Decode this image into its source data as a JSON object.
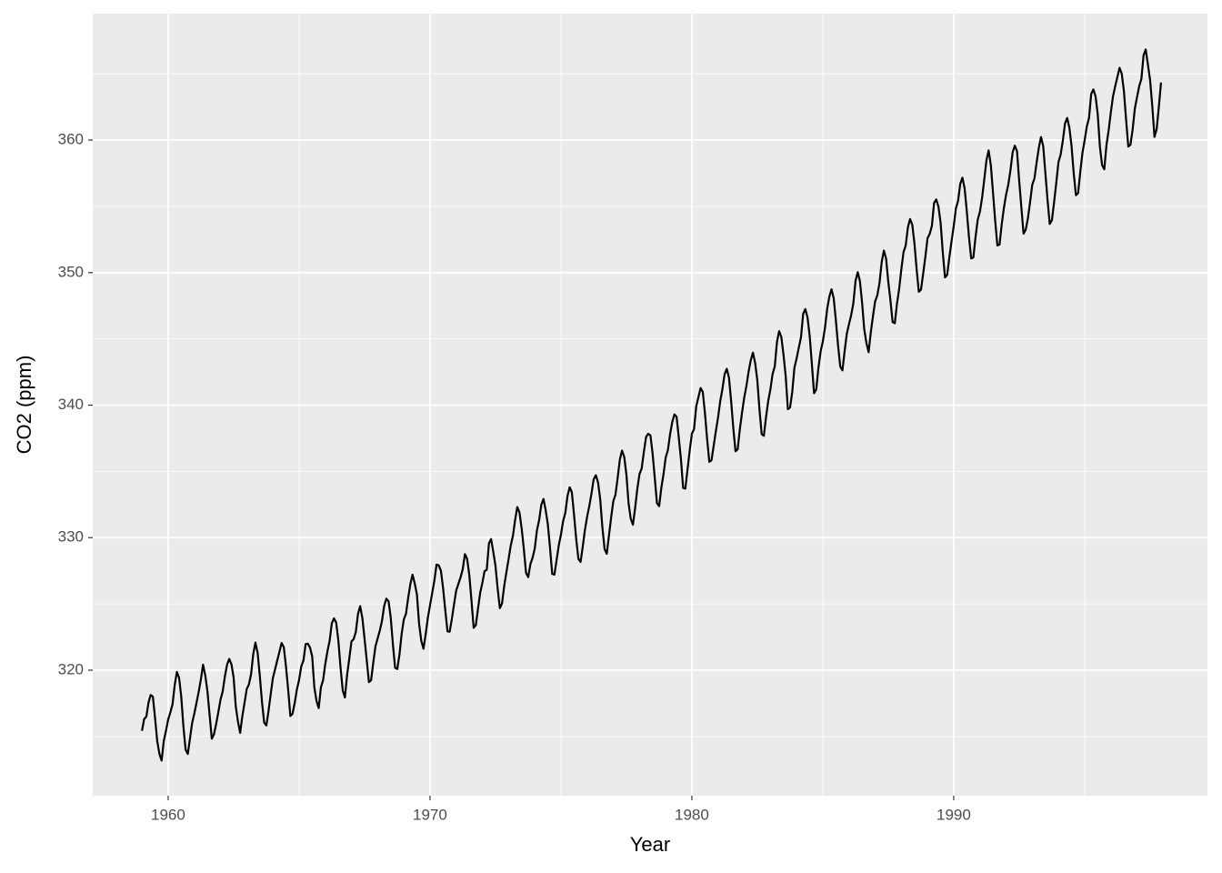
{
  "chart_data": {
    "type": "line",
    "x_label": "Year",
    "y_label": "CO2 (ppm)",
    "xlim": [
      1957.12,
      1999.69
    ],
    "xticks": [
      1960,
      1970,
      1980,
      1990
    ],
    "ylim": [
      310.53,
      369.54
    ],
    "yticks": [
      320,
      330,
      340,
      350,
      360
    ],
    "grid": true,
    "x": [
      1959,
      1959.083,
      1959.167,
      1959.25,
      1959.333,
      1959.417,
      1959.5,
      1959.583,
      1959.667,
      1959.75,
      1959.833,
      1959.917,
      1960,
      1960.083,
      1960.167,
      1960.25,
      1960.333,
      1960.417,
      1960.5,
      1960.583,
      1960.667,
      1960.75,
      1960.833,
      1960.917,
      1961,
      1961.083,
      1961.167,
      1961.25,
      1961.333,
      1961.417,
      1961.5,
      1961.583,
      1961.667,
      1961.75,
      1961.833,
      1961.917,
      1962,
      1962.083,
      1962.167,
      1962.25,
      1962.333,
      1962.417,
      1962.5,
      1962.583,
      1962.667,
      1962.75,
      1962.833,
      1962.917,
      1963,
      1963.083,
      1963.167,
      1963.25,
      1963.333,
      1963.417,
      1963.5,
      1963.583,
      1963.667,
      1963.75,
      1963.833,
      1963.917,
      1964,
      1964.083,
      1964.167,
      1964.25,
      1964.333,
      1964.417,
      1964.5,
      1964.583,
      1964.667,
      1964.75,
      1964.833,
      1964.917,
      1965,
      1965.083,
      1965.167,
      1965.25,
      1965.333,
      1965.417,
      1965.5,
      1965.583,
      1965.667,
      1965.75,
      1965.833,
      1965.917,
      1966,
      1966.083,
      1966.167,
      1966.25,
      1966.333,
      1966.417,
      1966.5,
      1966.583,
      1966.667,
      1966.75,
      1966.833,
      1966.917,
      1967,
      1967.083,
      1967.167,
      1967.25,
      1967.333,
      1967.417,
      1967.5,
      1967.583,
      1967.667,
      1967.75,
      1967.833,
      1967.917,
      1968,
      1968.083,
      1968.167,
      1968.25,
      1968.333,
      1968.417,
      1968.5,
      1968.583,
      1968.667,
      1968.75,
      1968.833,
      1968.917,
      1969,
      1969.083,
      1969.167,
      1969.25,
      1969.333,
      1969.417,
      1969.5,
      1969.583,
      1969.667,
      1969.75,
      1969.833,
      1969.917,
      1970,
      1970.083,
      1970.167,
      1970.25,
      1970.333,
      1970.417,
      1970.5,
      1970.583,
      1970.667,
      1970.75,
      1970.833,
      1970.917,
      1971,
      1971.083,
      1971.167,
      1971.25,
      1971.333,
      1971.417,
      1971.5,
      1971.583,
      1971.667,
      1971.75,
      1971.833,
      1971.917,
      1972,
      1972.083,
      1972.167,
      1972.25,
      1972.333,
      1972.417,
      1972.5,
      1972.583,
      1972.667,
      1972.75,
      1972.833,
      1972.917,
      1973,
      1973.083,
      1973.167,
      1973.25,
      1973.333,
      1973.417,
      1973.5,
      1973.583,
      1973.667,
      1973.75,
      1973.833,
      1973.917,
      1974,
      1974.083,
      1974.167,
      1974.25,
      1974.333,
      1974.417,
      1974.5,
      1974.583,
      1974.667,
      1974.75,
      1974.833,
      1974.917,
      1975,
      1975.083,
      1975.167,
      1975.25,
      1975.333,
      1975.417,
      1975.5,
      1975.583,
      1975.667,
      1975.75,
      1975.833,
      1975.917,
      1976,
      1976.083,
      1976.167,
      1976.25,
      1976.333,
      1976.417,
      1976.5,
      1976.583,
      1976.667,
      1976.75,
      1976.833,
      1976.917,
      1977,
      1977.083,
      1977.167,
      1977.25,
      1977.333,
      1977.417,
      1977.5,
      1977.583,
      1977.667,
      1977.75,
      1977.833,
      1977.917,
      1978,
      1978.083,
      1978.167,
      1978.25,
      1978.333,
      1978.417,
      1978.5,
      1978.583,
      1978.667,
      1978.75,
      1978.833,
      1978.917,
      1979,
      1979.083,
      1979.167,
      1979.25,
      1979.333,
      1979.417,
      1979.5,
      1979.583,
      1979.667,
      1979.75,
      1979.833,
      1979.917,
      1980,
      1980.083,
      1980.167,
      1980.25,
      1980.333,
      1980.417,
      1980.5,
      1980.583,
      1980.667,
      1980.75,
      1980.833,
      1980.917,
      1981,
      1981.083,
      1981.167,
      1981.25,
      1981.333,
      1981.417,
      1981.5,
      1981.583,
      1981.667,
      1981.75,
      1981.833,
      1981.917,
      1982,
      1982.083,
      1982.167,
      1982.25,
      1982.333,
      1982.417,
      1982.5,
      1982.583,
      1982.667,
      1982.75,
      1982.833,
      1982.917,
      1983,
      1983.083,
      1983.167,
      1983.25,
      1983.333,
      1983.417,
      1983.5,
      1983.583,
      1983.667,
      1983.75,
      1983.833,
      1983.917,
      1984,
      1984.083,
      1984.167,
      1984.25,
      1984.333,
      1984.417,
      1984.5,
      1984.583,
      1984.667,
      1984.75,
      1984.833,
      1984.917,
      1985,
      1985.083,
      1985.167,
      1985.25,
      1985.333,
      1985.417,
      1985.5,
      1985.583,
      1985.667,
      1985.75,
      1985.833,
      1985.917,
      1986,
      1986.083,
      1986.167,
      1986.25,
      1986.333,
      1986.417,
      1986.5,
      1986.583,
      1986.667,
      1986.75,
      1986.833,
      1986.917,
      1987,
      1987.083,
      1987.167,
      1987.25,
      1987.333,
      1987.417,
      1987.5,
      1987.583,
      1987.667,
      1987.75,
      1987.833,
      1987.917,
      1988,
      1988.083,
      1988.167,
      1988.25,
      1988.333,
      1988.417,
      1988.5,
      1988.583,
      1988.667,
      1988.75,
      1988.833,
      1988.917,
      1989,
      1989.083,
      1989.167,
      1989.25,
      1989.333,
      1989.417,
      1989.5,
      1989.583,
      1989.667,
      1989.75,
      1989.833,
      1989.917,
      1990,
      1990.083,
      1990.167,
      1990.25,
      1990.333,
      1990.417,
      1990.5,
      1990.583,
      1990.667,
      1990.75,
      1990.833,
      1990.917,
      1991,
      1991.083,
      1991.167,
      1991.25,
      1991.333,
      1991.417,
      1991.5,
      1991.583,
      1991.667,
      1991.75,
      1991.833,
      1991.917,
      1992,
      1992.083,
      1992.167,
      1992.25,
      1992.333,
      1992.417,
      1992.5,
      1992.583,
      1992.667,
      1992.75,
      1992.833,
      1992.917,
      1993,
      1993.083,
      1993.167,
      1993.25,
      1993.333,
      1993.417,
      1993.5,
      1993.583,
      1993.667,
      1993.75,
      1993.833,
      1993.917,
      1994,
      1994.083,
      1994.167,
      1994.25,
      1994.333,
      1994.417,
      1994.5,
      1994.583,
      1994.667,
      1994.75,
      1994.833,
      1994.917,
      1995,
      1995.083,
      1995.167,
      1995.25,
      1995.333,
      1995.417,
      1995.5,
      1995.583,
      1995.667,
      1995.75,
      1995.833,
      1995.917,
      1996,
      1996.083,
      1996.167,
      1996.25,
      1996.333,
      1996.417,
      1996.5,
      1996.583,
      1996.667,
      1996.75,
      1996.833,
      1996.917,
      1997,
      1997.083,
      1997.167,
      1997.25,
      1997.333,
      1997.417,
      1997.5,
      1997.583,
      1997.667,
      1997.75,
      1997.833,
      1997.917
    ],
    "series": [
      {
        "color": "#000000",
        "values": [
          315.42,
          316.31,
          316.5,
          317.56,
          318.13,
          318.0,
          316.39,
          314.65,
          313.68,
          313.18,
          314.66,
          315.43,
          316.27,
          316.81,
          317.42,
          318.87,
          319.87,
          319.43,
          318.01,
          315.74,
          314.0,
          313.68,
          314.84,
          316.03,
          316.73,
          317.54,
          318.38,
          319.31,
          320.42,
          319.61,
          318.42,
          316.63,
          314.83,
          315.16,
          315.94,
          316.85,
          317.78,
          318.4,
          319.53,
          320.42,
          320.85,
          320.45,
          319.45,
          317.25,
          316.11,
          315.27,
          316.53,
          317.53,
          318.58,
          318.92,
          319.7,
          321.22,
          322.08,
          321.31,
          319.58,
          317.61,
          316.05,
          315.83,
          316.91,
          318.2,
          319.41,
          320.07,
          320.74,
          321.4,
          322.06,
          321.73,
          320.27,
          318.54,
          316.54,
          316.71,
          317.53,
          318.55,
          319.27,
          320.28,
          320.73,
          321.97,
          322.0,
          321.71,
          321.05,
          318.71,
          317.66,
          317.14,
          318.7,
          319.25,
          320.46,
          321.43,
          322.23,
          323.54,
          323.91,
          323.59,
          322.24,
          320.2,
          318.48,
          317.94,
          319.63,
          320.87,
          322.17,
          322.34,
          322.88,
          324.25,
          324.83,
          323.93,
          322.38,
          320.76,
          319.1,
          319.24,
          320.56,
          321.8,
          322.4,
          322.99,
          323.73,
          324.86,
          325.4,
          325.2,
          323.98,
          321.95,
          320.18,
          320.09,
          321.16,
          322.74,
          323.83,
          324.26,
          325.47,
          326.5,
          327.21,
          326.54,
          325.72,
          323.5,
          322.22,
          321.62,
          322.69,
          323.95,
          324.89,
          325.82,
          326.77,
          327.97,
          327.91,
          327.5,
          326.18,
          324.53,
          322.93,
          322.9,
          323.85,
          324.96,
          326.01,
          326.51,
          327.01,
          327.62,
          328.76,
          328.4,
          327.2,
          325.27,
          323.2,
          323.4,
          324.63,
          325.85,
          326.6,
          327.47,
          327.58,
          329.56,
          329.9,
          328.92,
          327.88,
          326.16,
          324.68,
          325.04,
          326.34,
          327.39,
          328.37,
          329.4,
          330.14,
          331.33,
          332.31,
          331.9,
          330.7,
          329.15,
          327.35,
          327.02,
          327.99,
          328.48,
          329.18,
          330.55,
          331.32,
          332.48,
          332.92,
          332.08,
          331.01,
          329.23,
          327.27,
          327.21,
          328.29,
          329.41,
          330.23,
          331.25,
          331.87,
          333.14,
          333.8,
          333.43,
          331.73,
          329.9,
          328.4,
          328.17,
          329.32,
          330.59,
          331.58,
          332.39,
          333.33,
          334.41,
          334.71,
          334.17,
          332.89,
          330.77,
          329.14,
          328.78,
          330.14,
          331.52,
          332.75,
          333.24,
          334.53,
          335.9,
          336.57,
          336.1,
          334.76,
          332.59,
          331.42,
          330.98,
          332.24,
          333.68,
          334.8,
          335.22,
          336.47,
          337.59,
          337.84,
          337.72,
          336.37,
          334.51,
          332.6,
          332.38,
          333.75,
          334.78,
          336.05,
          336.59,
          337.79,
          338.71,
          339.3,
          339.12,
          337.56,
          335.92,
          333.75,
          333.7,
          335.12,
          336.56,
          337.84,
          338.19,
          339.91,
          340.6,
          341.29,
          341.0,
          339.39,
          337.43,
          335.72,
          335.84,
          336.93,
          338.04,
          339.06,
          340.3,
          341.21,
          342.33,
          342.74,
          342.08,
          340.32,
          338.26,
          336.52,
          336.68,
          338.19,
          339.44,
          340.57,
          341.44,
          342.53,
          343.39,
          343.96,
          343.18,
          341.88,
          339.65,
          337.81,
          337.69,
          339.09,
          340.32,
          341.2,
          342.35,
          342.93,
          344.77,
          345.58,
          345.14,
          343.81,
          342.21,
          339.69,
          339.82,
          340.98,
          342.82,
          343.52,
          344.33,
          345.11,
          346.88,
          347.25,
          346.62,
          345.22,
          343.11,
          340.9,
          341.18,
          342.8,
          344.04,
          344.79,
          345.82,
          347.25,
          348.17,
          348.74,
          348.07,
          346.38,
          344.51,
          342.92,
          342.62,
          344.06,
          345.38,
          346.11,
          346.78,
          347.68,
          349.37,
          350.03,
          349.37,
          347.76,
          345.73,
          344.68,
          343.99,
          345.48,
          346.72,
          347.84,
          348.29,
          349.23,
          350.8,
          351.66,
          351.07,
          349.33,
          347.92,
          346.27,
          346.18,
          347.64,
          348.78,
          350.25,
          351.54,
          352.05,
          353.41,
          354.04,
          353.62,
          352.22,
          350.27,
          348.55,
          348.72,
          349.91,
          351.18,
          352.6,
          352.92,
          353.53,
          355.26,
          355.52,
          354.97,
          353.75,
          351.52,
          349.64,
          349.83,
          351.14,
          352.37,
          353.5,
          354.84,
          355.42,
          356.7,
          357.16,
          356.35,
          354.62,
          352.68,
          351.07,
          351.14,
          352.68,
          353.99,
          354.59,
          355.63,
          357.03,
          358.48,
          359.22,
          358.12,
          356.06,
          353.92,
          352.05,
          352.11,
          353.64,
          354.89,
          355.88,
          356.63,
          357.72,
          359.07,
          359.58,
          359.17,
          356.94,
          354.92,
          352.94,
          353.23,
          354.09,
          355.33,
          356.63,
          357.1,
          358.32,
          359.41,
          360.23,
          359.55,
          357.53,
          355.48,
          353.67,
          353.95,
          355.3,
          356.78,
          358.34,
          358.89,
          359.95,
          361.25,
          361.67,
          360.94,
          359.55,
          357.49,
          355.84,
          356.0,
          357.59,
          359.05,
          359.98,
          361.03,
          361.66,
          363.48,
          363.82,
          363.3,
          361.94,
          359.5,
          358.11,
          357.8,
          359.61,
          360.74,
          362.09,
          363.29,
          364.06,
          364.76,
          365.45,
          365.01,
          363.7,
          361.54,
          359.51,
          359.65,
          360.8,
          362.38,
          363.23,
          364.06,
          364.61,
          366.4,
          366.84,
          365.68,
          364.52,
          362.57,
          360.24,
          360.83,
          362.49,
          364.34
        ]
      }
    ]
  }
}
